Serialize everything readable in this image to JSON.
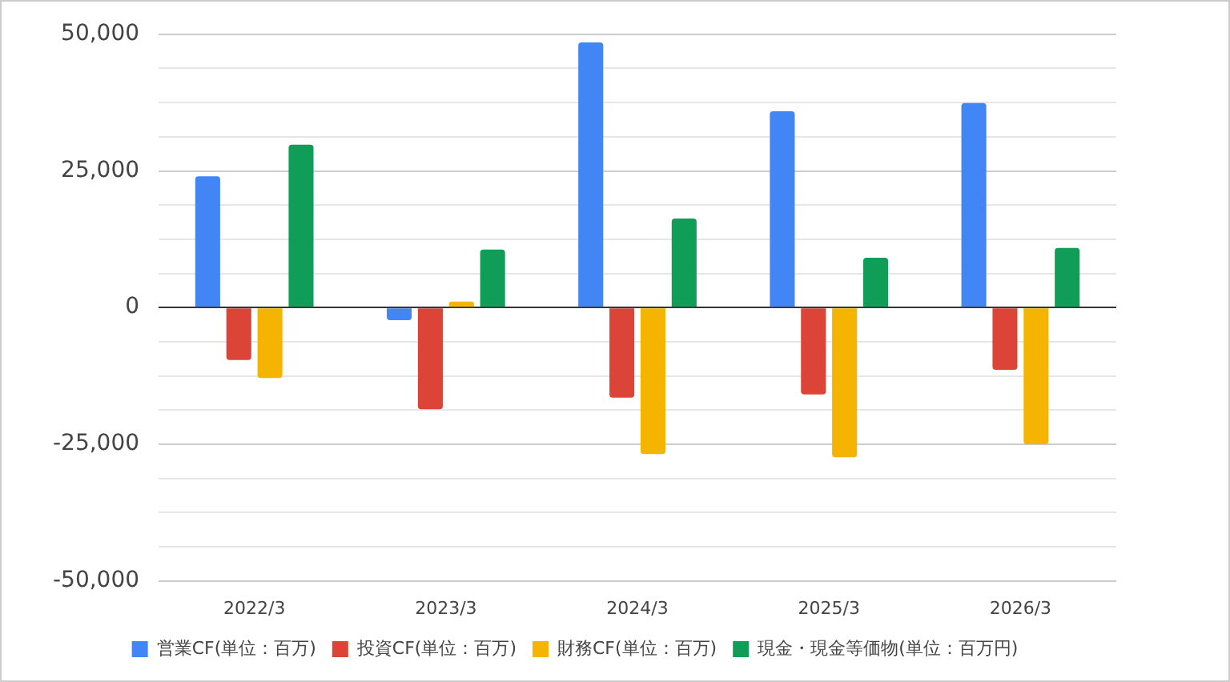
{
  "chart_data": {
    "type": "bar",
    "categories": [
      "2022/3",
      "2023/3",
      "2024/3",
      "2025/3",
      "2026/3"
    ],
    "series": [
      {
        "name": "営業CF(単位：百万)",
        "color": "#4285f4",
        "values": [
          24000,
          -2300,
          48500,
          35900,
          37400
        ]
      },
      {
        "name": "投資CF(単位：百万)",
        "color": "#db4437",
        "values": [
          -9600,
          -18600,
          -16500,
          -15900,
          -11400
        ]
      },
      {
        "name": "財務CF(単位：百万)",
        "color": "#f4b400",
        "values": [
          -12900,
          1100,
          -26800,
          -27400,
          -25000
        ]
      },
      {
        "name": "現金・現金等価物(単位：百万円)",
        "color": "#0f9d58",
        "values": [
          29800,
          10600,
          16300,
          9100,
          10900
        ]
      }
    ],
    "ylim": [
      -50000,
      50000
    ],
    "yticks": [
      {
        "value": -50000,
        "label": "-50,000"
      },
      {
        "value": -43750,
        "label": null
      },
      {
        "value": -37500,
        "label": null
      },
      {
        "value": -31250,
        "label": null
      },
      {
        "value": -25000,
        "label": "-25,000"
      },
      {
        "value": -18750,
        "label": null
      },
      {
        "value": -12500,
        "label": null
      },
      {
        "value": -6250,
        "label": null
      },
      {
        "value": 0,
        "label": "0"
      },
      {
        "value": 6250,
        "label": null
      },
      {
        "value": 12500,
        "label": null
      },
      {
        "value": 18750,
        "label": null
      },
      {
        "value": 25000,
        "label": "25,000"
      },
      {
        "value": 31250,
        "label": null
      },
      {
        "value": 37500,
        "label": null
      },
      {
        "value": 43750,
        "label": null
      },
      {
        "value": 50000,
        "label": "50,000"
      }
    ],
    "grid": "y",
    "legend": "bottom"
  }
}
